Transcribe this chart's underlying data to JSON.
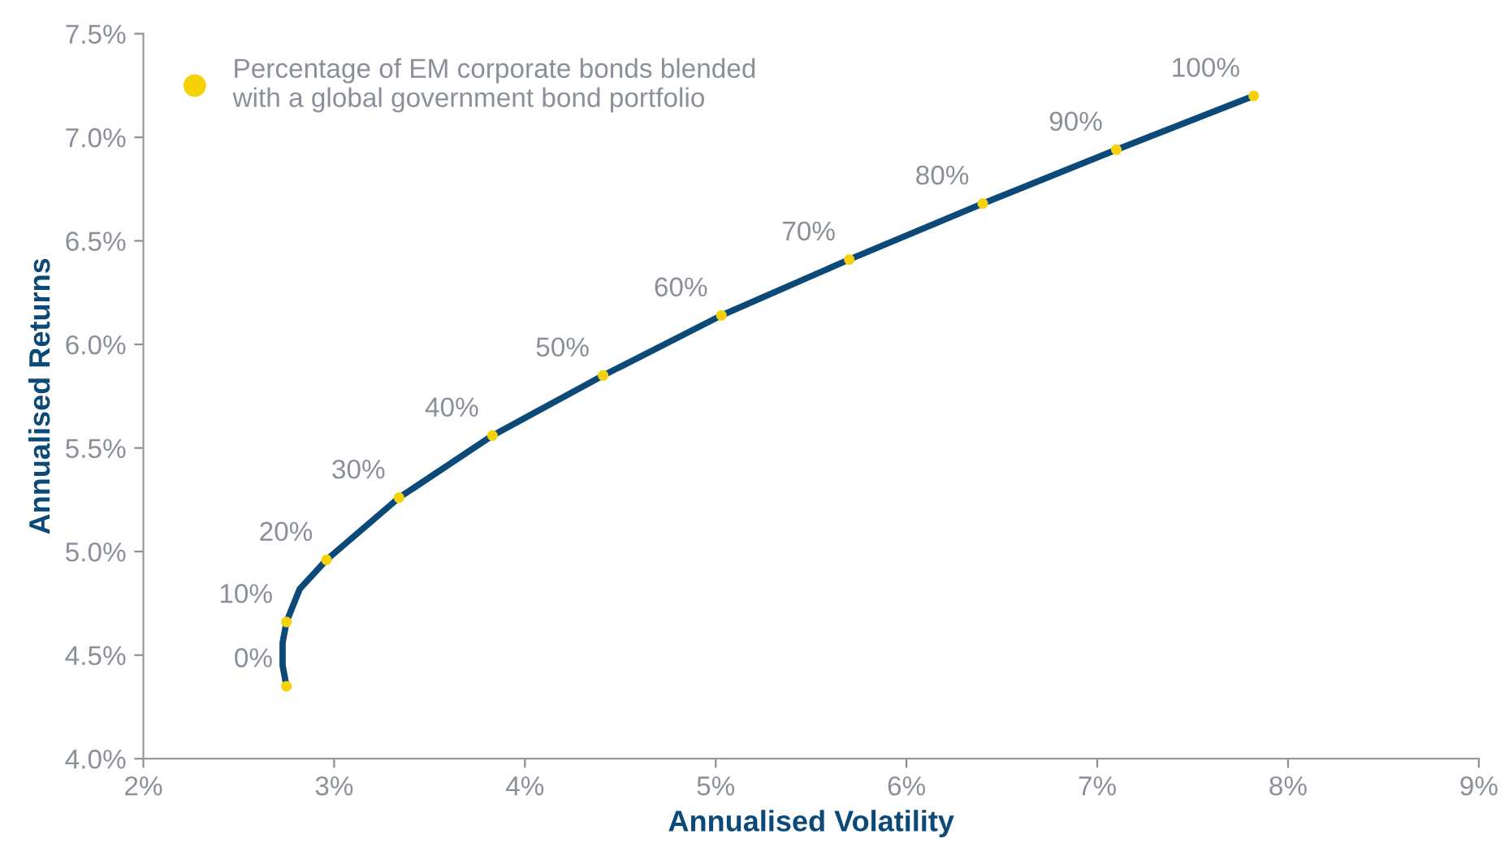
{
  "chart_data": {
    "type": "line",
    "xlabel": "Annualised Volatility",
    "ylabel": "Annualised Returns",
    "xlim": [
      2,
      9
    ],
    "xticks": [
      {
        "value": 2,
        "label": "2%"
      },
      {
        "value": 3,
        "label": "3%"
      },
      {
        "value": 4,
        "label": "4%"
      },
      {
        "value": 5,
        "label": "5%"
      },
      {
        "value": 6,
        "label": "6%"
      },
      {
        "value": 7,
        "label": "7%"
      },
      {
        "value": 8,
        "label": "8%"
      },
      {
        "value": 9,
        "label": "9%"
      }
    ],
    "ylim": [
      4.0,
      7.5
    ],
    "yticks": [
      {
        "value": 4.0,
        "label": "4.0%"
      },
      {
        "value": 4.5,
        "label": "4.5%"
      },
      {
        "value": 5.0,
        "label": "5.0%"
      },
      {
        "value": 5.5,
        "label": "5.5%"
      },
      {
        "value": 6.0,
        "label": "6.0%"
      },
      {
        "value": 6.5,
        "label": "6.5%"
      },
      {
        "value": 7.0,
        "label": "7.0%"
      },
      {
        "value": 7.5,
        "label": "7.5%"
      }
    ],
    "grid": false,
    "legend": "top left",
    "series": [
      {
        "color": "#0b4a78",
        "line_style": "solid",
        "marker": "none",
        "x": [
          2.75,
          2.73,
          2.73,
          2.75,
          2.82,
          2.96,
          3.34,
          3.83,
          4.41,
          5.03,
          5.7,
          6.4,
          7.1,
          7.82
        ],
        "values": [
          4.35,
          4.45,
          4.56,
          4.66,
          4.82,
          4.96,
          5.26,
          5.56,
          5.85,
          6.14,
          6.41,
          6.68,
          6.94,
          7.2
        ]
      },
      {
        "type": "scatter",
        "name": "Percentage of EM corporate bonds blended\nwith a global government bond portfolio",
        "color": "#f5d10a",
        "marker": "circle",
        "x": [
          2.75,
          2.75,
          2.96,
          3.34,
          3.83,
          4.41,
          5.03,
          5.7,
          6.4,
          7.1,
          7.82
        ],
        "values": [
          4.35,
          4.66,
          4.96,
          5.26,
          5.56,
          5.85,
          6.14,
          6.41,
          6.68,
          6.94,
          7.2
        ]
      }
    ],
    "annotations": [
      {
        "text": "0%",
        "x": 2.75,
        "y": 4.35
      },
      {
        "text": "10%",
        "x": 2.75,
        "y": 4.66
      },
      {
        "text": "20%",
        "x": 2.96,
        "y": 4.96
      },
      {
        "text": "30%",
        "x": 3.34,
        "y": 5.26
      },
      {
        "text": "40%",
        "x": 3.83,
        "y": 5.56
      },
      {
        "text": "50%",
        "x": 4.41,
        "y": 5.85
      },
      {
        "text": "60%",
        "x": 5.03,
        "y": 6.14
      },
      {
        "text": "70%",
        "x": 5.7,
        "y": 6.41
      },
      {
        "text": "80%",
        "x": 6.4,
        "y": 6.68
      },
      {
        "text": "90%",
        "x": 7.1,
        "y": 6.94
      },
      {
        "text": "100%",
        "x": 7.82,
        "y": 7.2
      }
    ]
  }
}
